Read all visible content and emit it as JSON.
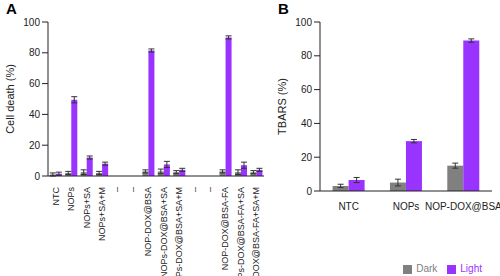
{
  "chart_data": [
    {
      "type": "bar",
      "title": "A",
      "y_label": "Cell death (%)",
      "categories": [
        "NTC",
        "NOPs",
        "NOPs+SA",
        "NOPs+SA+M",
        "–",
        "–",
        "NOP-DOX@BSA",
        "NOPs-DOX@BSA+SA",
        "NOPs-DOX@BSA+SA+M",
        "–",
        "–",
        "NOP-DOX@BSA-FA",
        "NOPs-DOX@BSA-FA+SA",
        "NOPs-DOX@BSA-FA+SA+M"
      ],
      "series": [
        {
          "name": "Dark",
          "color": "#808080",
          "values": [
            1,
            2,
            2.5,
            2,
            null,
            null,
            3,
            3,
            2.5,
            null,
            null,
            3,
            2.5,
            2.5
          ],
          "errors": [
            1,
            1,
            1.5,
            1,
            null,
            null,
            1,
            1.5,
            1,
            null,
            null,
            1,
            1.5,
            1
          ]
        },
        {
          "name": "Light",
          "color": "#9933ff",
          "values": [
            1.5,
            49.5,
            12,
            8,
            null,
            null,
            81.5,
            7.5,
            4,
            null,
            null,
            90,
            7,
            4
          ],
          "errors": [
            1,
            2,
            1,
            1,
            null,
            null,
            1,
            2,
            1,
            null,
            null,
            1,
            2,
            1
          ]
        }
      ],
      "ylim": [
        0,
        100
      ],
      "yticks": [
        0,
        20,
        40,
        60,
        80,
        100
      ],
      "grid": false
    },
    {
      "type": "bar",
      "title": "B",
      "y_label": "TBARS (%)",
      "categories": [
        "NTC",
        "NOPs",
        "NOP-DOX@BSA"
      ],
      "series": [
        {
          "name": "Dark",
          "color": "#808080",
          "values": [
            3,
            5,
            15
          ],
          "errors": [
            1,
            2,
            1.5
          ]
        },
        {
          "name": "Light",
          "color": "#9933ff",
          "values": [
            6.5,
            29.5,
            89
          ],
          "errors": [
            1.5,
            1,
            1
          ]
        }
      ],
      "ylim": [
        0,
        100
      ],
      "yticks": [
        0,
        20,
        40,
        60,
        80,
        100
      ],
      "grid": false,
      "legend": "lower right"
    }
  ]
}
